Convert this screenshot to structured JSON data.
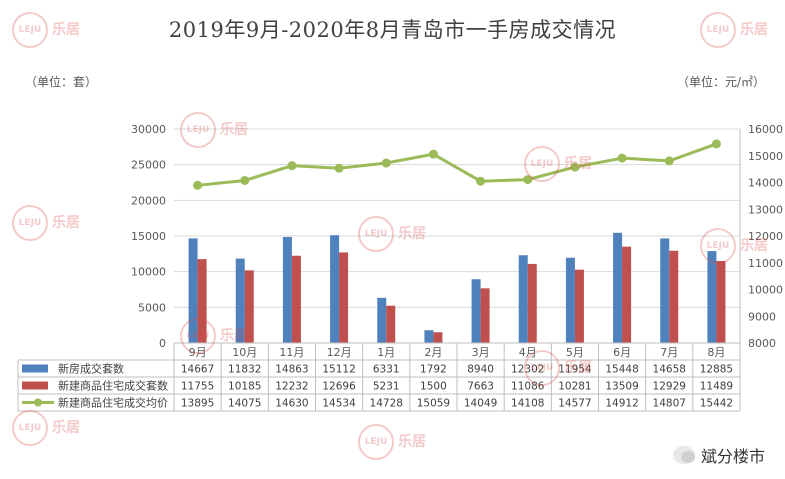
{
  "chart_data": {
    "type": "bar",
    "title": "2019年9月-2020年8月青岛市一手房成交情况",
    "left_unit": "（单位：套）",
    "right_unit": "（单位：元/㎡）",
    "categories": [
      "9月",
      "10月",
      "11月",
      "12月",
      "1月",
      "2月",
      "3月",
      "4月",
      "5月",
      "6月",
      "7月",
      "8月"
    ],
    "ylim_left": [
      0,
      30000
    ],
    "yticks_left": [
      0,
      5000,
      10000,
      15000,
      20000,
      25000,
      30000
    ],
    "ylim_right": [
      8000,
      16000
    ],
    "yticks_right": [
      8000,
      9000,
      10000,
      11000,
      12000,
      13000,
      14000,
      15000,
      16000
    ],
    "series": [
      {
        "name": "新房成交套数",
        "type": "bar",
        "axis": "left",
        "color": "#4f81bd",
        "values": [
          14667,
          11832,
          14863,
          15112,
          6331,
          1792,
          8940,
          12302,
          11954,
          15448,
          14658,
          12885
        ]
      },
      {
        "name": "新建商品住宅成交套数",
        "type": "bar",
        "axis": "left",
        "color": "#c0504d",
        "values": [
          11755,
          10185,
          12232,
          12696,
          5231,
          1500,
          7663,
          11086,
          10281,
          13509,
          12929,
          11489
        ]
      },
      {
        "name": "新建商品住宅成交均价",
        "type": "line",
        "axis": "right",
        "color": "#9bbb59",
        "values": [
          13895,
          14075,
          14630,
          14534,
          14728,
          15059,
          14049,
          14108,
          14577,
          14912,
          14807,
          15442
        ]
      }
    ],
    "grid": true,
    "data_table": true
  },
  "watermark": {
    "logo": "LEJU",
    "text": "乐居"
  },
  "footer": {
    "account": "斌分楼市"
  }
}
